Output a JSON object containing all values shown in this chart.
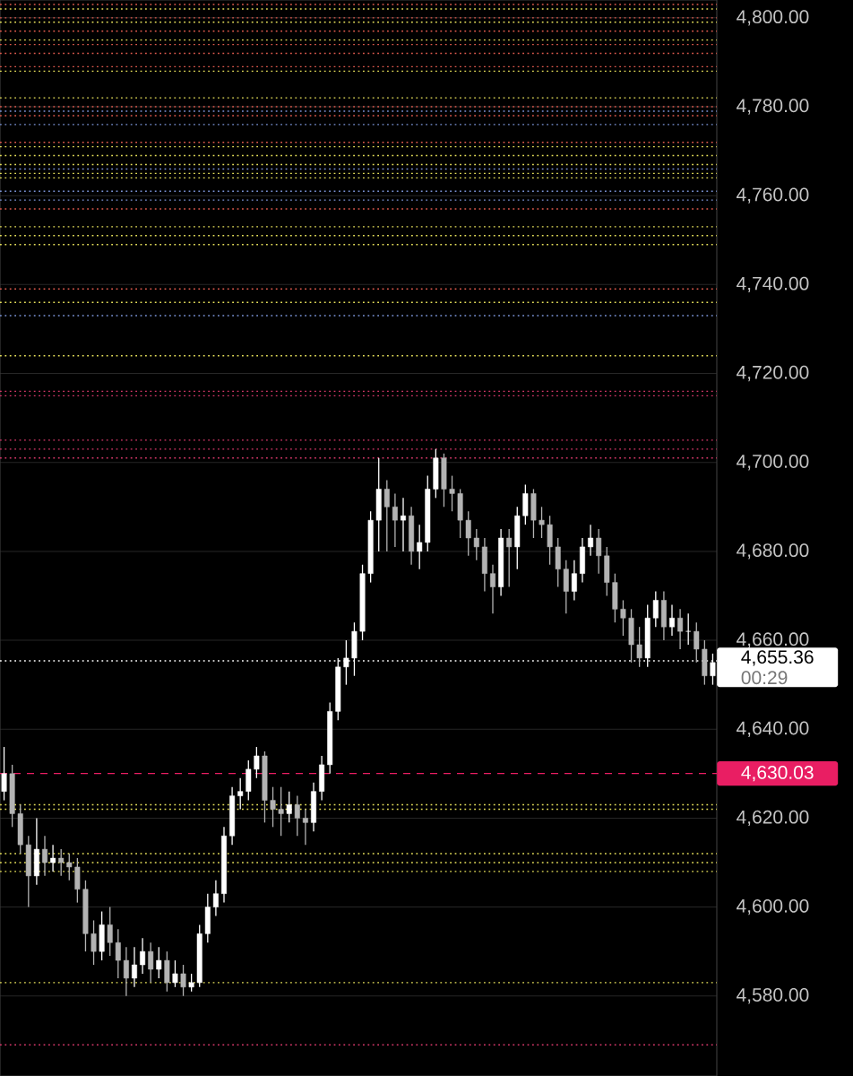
{
  "chart_data": {
    "type": "candlestick",
    "categories": [
      null,
      null,
      null,
      null,
      null,
      null,
      null,
      null,
      null,
      null,
      null,
      null,
      null,
      null,
      null,
      null,
      null,
      null,
      null,
      null,
      null,
      null,
      null,
      null,
      null,
      null,
      null,
      null,
      null,
      null,
      null,
      null,
      null,
      null,
      null,
      null,
      null,
      null,
      null,
      null,
      null,
      null,
      null,
      null,
      null,
      null,
      null,
      null,
      null,
      null,
      null,
      null,
      null,
      null,
      null,
      null,
      null,
      null,
      null,
      null,
      null,
      null,
      null,
      null,
      null,
      null,
      null,
      null,
      null,
      null,
      null,
      null,
      null,
      null,
      null,
      null,
      null,
      null,
      null,
      null,
      null,
      null,
      null,
      null,
      null,
      null,
      null,
      null
    ],
    "ohlc": [
      [
        4626,
        4636,
        4624,
        4630
      ],
      [
        4630,
        4632,
        4618,
        4621
      ],
      [
        4621,
        4623,
        4612,
        4614
      ],
      [
        4614,
        4616,
        4600,
        4607
      ],
      [
        4607,
        4620,
        4605,
        4613
      ],
      [
        4613,
        4616,
        4607,
        4610
      ],
      [
        4610,
        4614,
        4608,
        4611
      ],
      [
        4611,
        4613,
        4607,
        4610
      ],
      [
        4610,
        4612,
        4606,
        4609
      ],
      [
        4609,
        4611,
        4601,
        4604
      ],
      [
        4604,
        4606,
        4590,
        4594
      ],
      [
        4594,
        4597,
        4587,
        4590
      ],
      [
        4590,
        4599,
        4588,
        4596
      ],
      [
        4596,
        4600,
        4589,
        4592
      ],
      [
        4592,
        4595,
        4584,
        4588
      ],
      [
        4588,
        4591,
        4580,
        4584
      ],
      [
        4584,
        4591,
        4582,
        4587
      ],
      [
        4587,
        4593,
        4585,
        4590
      ],
      [
        4590,
        4592,
        4583,
        4586
      ],
      [
        4586,
        4591,
        4584,
        4588
      ],
      [
        4588,
        4590,
        4581,
        4583
      ],
      [
        4583,
        4588,
        4582,
        4585
      ],
      [
        4585,
        4587,
        4580,
        4582
      ],
      [
        4582,
        4585,
        4581,
        4583
      ],
      [
        4583,
        4596,
        4582,
        4594
      ],
      [
        4594,
        4603,
        4592,
        4600
      ],
      [
        4600,
        4606,
        4598,
        4603
      ],
      [
        4603,
        4618,
        4601,
        4616
      ],
      [
        4616,
        4627,
        4614,
        4625
      ],
      [
        4625,
        4629,
        4622,
        4626
      ],
      [
        4626,
        4633,
        4624,
        4631
      ],
      [
        4631,
        4636,
        4629,
        4634
      ],
      [
        4634,
        4635,
        4619,
        4624
      ],
      [
        4624,
        4627,
        4618,
        4622
      ],
      [
        4622,
        4627,
        4616,
        4621
      ],
      [
        4621,
        4626,
        4619,
        4623
      ],
      [
        4623,
        4625,
        4616,
        4620
      ],
      [
        4620,
        4622,
        4614,
        4619
      ],
      [
        4619,
        4628,
        4617,
        4626
      ],
      [
        4626,
        4634,
        4624,
        4632
      ],
      [
        4632,
        4646,
        4630,
        4644
      ],
      [
        4644,
        4656,
        4642,
        4654
      ],
      [
        4654,
        4660,
        4650,
        4656
      ],
      [
        4656,
        4664,
        4652,
        4662
      ],
      [
        4662,
        4677,
        4660,
        4675
      ],
      [
        4675,
        4689,
        4673,
        4687
      ],
      [
        4687,
        4701,
        4680,
        4694
      ],
      [
        4694,
        4696,
        4680,
        4690
      ],
      [
        4690,
        4693,
        4681,
        4687
      ],
      [
        4687,
        4692,
        4680,
        4688
      ],
      [
        4688,
        4690,
        4677,
        4680
      ],
      [
        4680,
        4686,
        4676,
        4682
      ],
      [
        4682,
        4697,
        4680,
        4694
      ],
      [
        4694,
        4703,
        4692,
        4701
      ],
      [
        4701,
        4702,
        4690,
        4694
      ],
      [
        4694,
        4697,
        4689,
        4693
      ],
      [
        4693,
        4694,
        4683,
        4687
      ],
      [
        4687,
        4689,
        4679,
        4683
      ],
      [
        4683,
        4685,
        4678,
        4681
      ],
      [
        4681,
        4683,
        4671,
        4675
      ],
      [
        4675,
        4677,
        4666,
        4672
      ],
      [
        4672,
        4685,
        4670,
        4683
      ],
      [
        4683,
        4685,
        4672,
        4681
      ],
      [
        4681,
        4690,
        4676,
        4688
      ],
      [
        4688,
        4695,
        4686,
        4693
      ],
      [
        4693,
        4694,
        4683,
        4687
      ],
      [
        4687,
        4690,
        4683,
        4686
      ],
      [
        4686,
        4688,
        4677,
        4681
      ],
      [
        4681,
        4683,
        4672,
        4676
      ],
      [
        4676,
        4678,
        4666,
        4671
      ],
      [
        4671,
        4678,
        4669,
        4675
      ],
      [
        4675,
        4683,
        4673,
        4681
      ],
      [
        4681,
        4686,
        4679,
        4683
      ],
      [
        4683,
        4685,
        4675,
        4679
      ],
      [
        4679,
        4681,
        4670,
        4673
      ],
      [
        4673,
        4675,
        4664,
        4667
      ],
      [
        4667,
        4669,
        4661,
        4665
      ],
      [
        4665,
        4667,
        4655,
        4659
      ],
      [
        4659,
        4663,
        4654,
        4656
      ],
      [
        4656,
        4668,
        4654,
        4665
      ],
      [
        4665,
        4671,
        4663,
        4669
      ],
      [
        4669,
        4671,
        4660,
        4663
      ],
      [
        4663,
        4668,
        4661,
        4665
      ],
      [
        4665,
        4667,
        4658,
        4662
      ],
      [
        4662,
        4666,
        4659,
        4662
      ],
      [
        4662,
        4664,
        4655,
        4658
      ],
      [
        4658,
        4660,
        4650,
        4652
      ],
      [
        4652,
        4657,
        4650,
        4655
      ]
    ],
    "colors": [
      "#ffffff",
      "#b3b3b3",
      "#b3b3b3",
      "#b3b3b3",
      "#ffffff",
      "#b3b3b3",
      "#ffffff",
      "#b3b3b3",
      "#b3b3b3",
      "#b3b3b3",
      "#b3b3b3",
      "#b3b3b3",
      "#ffffff",
      "#b3b3b3",
      "#b3b3b3",
      "#b3b3b3",
      "#ffffff",
      "#ffffff",
      "#b3b3b3",
      "#ffffff",
      "#b3b3b3",
      "#ffffff",
      "#b3b3b3",
      "#ffffff",
      "#ffffff",
      "#ffffff",
      "#ffffff",
      "#ffffff",
      "#ffffff",
      "#ffffff",
      "#ffffff",
      "#ffffff",
      "#b3b3b3",
      "#b3b3b3",
      "#b3b3b3",
      "#ffffff",
      "#b3b3b3",
      "#b3b3b3",
      "#ffffff",
      "#ffffff",
      "#ffffff",
      "#ffffff",
      "#ffffff",
      "#ffffff",
      "#ffffff",
      "#ffffff",
      "#ffffff",
      "#b3b3b3",
      "#b3b3b3",
      "#ffffff",
      "#b3b3b3",
      "#ffffff",
      "#ffffff",
      "#ffffff",
      "#b3b3b3",
      "#b3b3b3",
      "#b3b3b3",
      "#b3b3b3",
      "#b3b3b3",
      "#b3b3b3",
      "#b3b3b3",
      "#ffffff",
      "#b3b3b3",
      "#ffffff",
      "#ffffff",
      "#b3b3b3",
      "#b3b3b3",
      "#b3b3b3",
      "#b3b3b3",
      "#b3b3b3",
      "#ffffff",
      "#ffffff",
      "#ffffff",
      "#b3b3b3",
      "#b3b3b3",
      "#b3b3b3",
      "#b3b3b3",
      "#b3b3b3",
      "#b3b3b3",
      "#ffffff",
      "#ffffff",
      "#b3b3b3",
      "#ffffff",
      "#b3b3b3",
      "#ffffff",
      "#b3b3b3",
      "#b3b3b3",
      "#ffffff"
    ],
    "ylim": [
      4562,
      4804
    ],
    "yticks": [
      {
        "value": 4580,
        "label": "4,580.00"
      },
      {
        "value": 4600,
        "label": "4,600.00"
      },
      {
        "value": 4620,
        "label": "4,620.00"
      },
      {
        "value": 4640,
        "label": "4,640.00"
      },
      {
        "value": 4660,
        "label": "4,660.00"
      },
      {
        "value": 4680,
        "label": "4,680.00"
      },
      {
        "value": 4700,
        "label": "4,700.00"
      },
      {
        "value": 4720,
        "label": "4,720.00"
      },
      {
        "value": 4740,
        "label": "4,740.00"
      },
      {
        "value": 4760,
        "label": "4,760.00"
      },
      {
        "value": 4780,
        "label": "4,780.00"
      },
      {
        "value": 4800,
        "label": "4,800.00"
      }
    ],
    "tick_labels": "y",
    "grid": "y",
    "ref_lines": [
      {
        "axis": "y",
        "value": 4655.36,
        "label": "4,655.36",
        "color": "#ffffff",
        "line_style": "dotted"
      },
      {
        "axis": "y",
        "value": 4630.03,
        "label": "4,630.03",
        "color": "#e91e63",
        "line_style": "dashed"
      },
      {
        "axis": "y",
        "value": 4803,
        "color": "#e05a4e",
        "line_style": "dotted"
      },
      {
        "axis": "y",
        "value": 4802,
        "color": "#e6e05a",
        "line_style": "dotted"
      },
      {
        "axis": "y",
        "value": 4800,
        "color": "#e05a4e",
        "line_style": "dotted"
      },
      {
        "axis": "y",
        "value": 4799,
        "color": "#e6e05a",
        "line_style": "dotted"
      },
      {
        "axis": "y",
        "value": 4797,
        "color": "#e05a4e",
        "line_style": "dotted"
      },
      {
        "axis": "y",
        "value": 4795,
        "color": "#e6e05a",
        "line_style": "dotted"
      },
      {
        "axis": "y",
        "value": 4794,
        "color": "#e05a4e",
        "line_style": "dotted"
      },
      {
        "axis": "y",
        "value": 4792,
        "color": "#e05a4e",
        "line_style": "dotted"
      },
      {
        "axis": "y",
        "value": 4789,
        "color": "#e05a4e",
        "line_style": "dotted"
      },
      {
        "axis": "y",
        "value": 4788,
        "color": "#e6e05a",
        "line_style": "dotted"
      },
      {
        "axis": "y",
        "value": 4782,
        "color": "#e6e05a",
        "line_style": "dotted"
      },
      {
        "axis": "y",
        "value": 4780,
        "color": "#e05a4e",
        "line_style": "dotted"
      },
      {
        "axis": "y",
        "value": 4779,
        "color": "#7b93d6",
        "line_style": "dotted"
      },
      {
        "axis": "y",
        "value": 4778,
        "color": "#e05a4e",
        "line_style": "dotted"
      },
      {
        "axis": "y",
        "value": 4776,
        "color": "#7b93d6",
        "line_style": "dotted"
      },
      {
        "axis": "y",
        "value": 4772,
        "color": "#e05a4e",
        "line_style": "dotted"
      },
      {
        "axis": "y",
        "value": 4771,
        "color": "#e6e05a",
        "line_style": "dotted"
      },
      {
        "axis": "y",
        "value": 4769,
        "color": "#e6e05a",
        "line_style": "dotted"
      },
      {
        "axis": "y",
        "value": 4767,
        "color": "#e6e05a",
        "line_style": "dotted"
      },
      {
        "axis": "y",
        "value": 4766,
        "color": "#7b93d6",
        "line_style": "dotted"
      },
      {
        "axis": "y",
        "value": 4765,
        "color": "#e6e05a",
        "line_style": "dotted"
      },
      {
        "axis": "y",
        "value": 4764,
        "color": "#e6e05a",
        "line_style": "dotted"
      },
      {
        "axis": "y",
        "value": 4761,
        "color": "#7b93d6",
        "line_style": "dotted"
      },
      {
        "axis": "y",
        "value": 4759,
        "color": "#7b93d6",
        "line_style": "dotted"
      },
      {
        "axis": "y",
        "value": 4757,
        "color": "#e05a4e",
        "line_style": "dotted"
      },
      {
        "axis": "y",
        "value": 4753,
        "color": "#e6e05a",
        "line_style": "dotted"
      },
      {
        "axis": "y",
        "value": 4751,
        "color": "#e6e05a",
        "line_style": "dotted"
      },
      {
        "axis": "y",
        "value": 4749,
        "color": "#e6e05a",
        "line_style": "dotted"
      },
      {
        "axis": "y",
        "value": 4739,
        "color": "#e05a4e",
        "line_style": "dotted"
      },
      {
        "axis": "y",
        "value": 4736,
        "color": "#e6e05a",
        "line_style": "dotted"
      },
      {
        "axis": "y",
        "value": 4733,
        "color": "#7b93d6",
        "line_style": "dotted"
      },
      {
        "axis": "y",
        "value": 4724,
        "color": "#e6e05a",
        "line_style": "dotted"
      },
      {
        "axis": "y",
        "value": 4716,
        "color": "#d6386a",
        "line_style": "dotted"
      },
      {
        "axis": "y",
        "value": 4715,
        "color": "#d6386a",
        "line_style": "dotted"
      },
      {
        "axis": "y",
        "value": 4705,
        "color": "#d6386a",
        "line_style": "dotted"
      },
      {
        "axis": "y",
        "value": 4703,
        "color": "#d6386a",
        "line_style": "dotted"
      },
      {
        "axis": "y",
        "value": 4701,
        "color": "#d6386a",
        "line_style": "dotted"
      },
      {
        "axis": "y",
        "value": 4623,
        "color": "#e6e05a",
        "line_style": "dotted"
      },
      {
        "axis": "y",
        "value": 4622,
        "color": "#e6e05a",
        "line_style": "dotted"
      },
      {
        "axis": "y",
        "value": 4612,
        "color": "#e6e05a",
        "line_style": "dotted"
      },
      {
        "axis": "y",
        "value": 4610,
        "color": "#e6e05a",
        "line_style": "dotted"
      },
      {
        "axis": "y",
        "value": 4608,
        "color": "#e6e05a",
        "line_style": "dotted"
      },
      {
        "axis": "y",
        "value": 4583,
        "color": "#e6e05a",
        "line_style": "dotted"
      },
      {
        "axis": "y",
        "value": 4569,
        "color": "#d6386a",
        "line_style": "dotted"
      }
    ],
    "annotations": [
      "00:29"
    ]
  }
}
